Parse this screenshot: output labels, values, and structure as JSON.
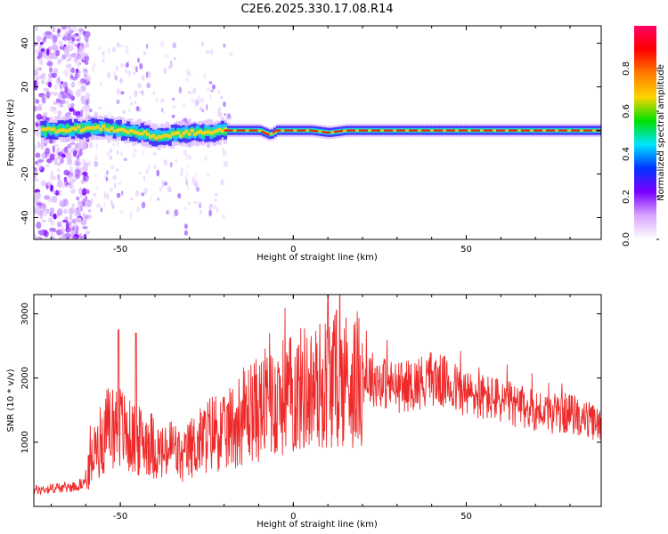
{
  "title": "C2E6.2025.330.17.08.R14",
  "colors": {
    "snr_line": "#ee2a2a",
    "ridge": "#e8241f",
    "colorbar_stops": [
      "#ffffff",
      "#d9a6ff",
      "#7a00ff",
      "#0033ff",
      "#00e5ff",
      "#00e000",
      "#ffd400",
      "#ff7a00",
      "#ff0000",
      "#ff0066"
    ]
  },
  "chart_data": [
    {
      "type": "heatmap",
      "name": "spectrogram",
      "xlabel": "Height of straight line (km)",
      "ylabel": "Frequency (Hz)",
      "xlim": [
        -75,
        89
      ],
      "ylim": [
        -50,
        48
      ],
      "xticks": [
        -50,
        0,
        50
      ],
      "yticks": [
        -40,
        -20,
        0,
        20,
        40
      ],
      "grid": false,
      "ridge": {
        "x": [
          -73,
          -60,
          -55,
          -50,
          -45,
          -40,
          -35,
          -30,
          -25,
          -20,
          -15,
          -10,
          -7,
          -5,
          0,
          5,
          10,
          15,
          20,
          30,
          40,
          50,
          60,
          70,
          80,
          89
        ],
        "y": [
          0,
          1,
          1,
          0,
          -1,
          -3,
          -2,
          -1,
          -1,
          0,
          0,
          0,
          -2,
          0,
          0,
          0,
          -1,
          0,
          0,
          0,
          0,
          0,
          0,
          0,
          0,
          0
        ]
      },
      "colorbar": {
        "label": "Normalized spectral amplitude",
        "range": [
          0.0,
          1.0
        ],
        "ticks": [
          "0.0",
          "0.2",
          "0.4",
          "0.6",
          "0.8"
        ]
      }
    },
    {
      "type": "line",
      "name": "snr",
      "xlabel": "Height of straight line (km)",
      "ylabel": "SNR (10 * v/v)",
      "xlim": [
        -75,
        89
      ],
      "ylim": [
        0,
        3300
      ],
      "xticks": [
        -50,
        0,
        50
      ],
      "yticks": [
        1000,
        2000,
        3000
      ],
      "grid": false,
      "series": [
        {
          "x": [
            -75,
            -70,
            -65,
            -62,
            -60,
            -57,
            -55,
            -52,
            -50,
            -48,
            -45,
            -42,
            -40,
            -37,
            -35,
            -32,
            -30,
            -27,
            -25,
            -22,
            -20,
            -17,
            -15,
            -12,
            -10,
            -8,
            -5,
            -3,
            0,
            3,
            5,
            8,
            10,
            12,
            15,
            18,
            20,
            25,
            30,
            35,
            40,
            45,
            50,
            55,
            60,
            65,
            70,
            75,
            80,
            85,
            89
          ],
          "y": [
            250,
            280,
            300,
            320,
            400,
            900,
            1100,
            1300,
            1250,
            1100,
            1000,
            1050,
            900,
            800,
            950,
            700,
            900,
            1000,
            1100,
            1200,
            1100,
            1300,
            1400,
            1500,
            1500,
            1600,
            1650,
            1700,
            1750,
            1850,
            1800,
            1900,
            1950,
            2000,
            2000,
            1950,
            2050,
            1950,
            1850,
            1900,
            2000,
            1900,
            1750,
            1700,
            1650,
            1550,
            1500,
            1450,
            1450,
            1350,
            1250
          ]
        }
      ]
    }
  ]
}
